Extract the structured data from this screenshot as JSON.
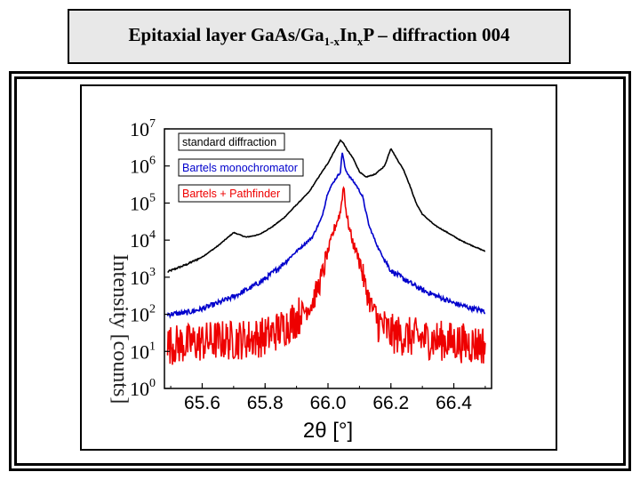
{
  "slide": {
    "title_main": "Epitaxial layer GaAs/Ga",
    "title_sub1": "1-x",
    "title_mid": "In",
    "title_sub2": "x",
    "title_end": "P – diffraction 004"
  },
  "chart_data": {
    "type": "line",
    "title": "",
    "xlabel": "2θ [°]",
    "ylabel": "Intensity [counts]",
    "yscale": "log",
    "xlim": [
      65.48,
      66.52
    ],
    "ylim": [
      1,
      10000000
    ],
    "x_ticks": [
      "65.6",
      "65.8",
      "66.0",
      "66.2",
      "66.4"
    ],
    "y_tick_base": "10",
    "y_tick_exponents": [
      "0",
      "1",
      "2",
      "3",
      "4",
      "5",
      "6",
      "7"
    ],
    "grid": false,
    "legend_position": "top-left",
    "series": [
      {
        "name": "standard diffraction",
        "color": "#000000",
        "x": [
          65.49,
          65.55,
          65.6,
          65.65,
          65.7,
          65.74,
          65.78,
          65.82,
          65.86,
          65.9,
          65.94,
          65.97,
          66.0,
          66.02,
          66.04,
          66.05,
          66.06,
          66.08,
          66.1,
          66.12,
          66.15,
          66.18,
          66.2,
          66.22,
          66.24,
          66.26,
          66.28,
          66.3,
          66.34,
          66.38,
          66.42,
          66.46,
          66.5
        ],
        "y": [
          1400,
          2200,
          3500,
          7000,
          16000,
          12000,
          14000,
          22000,
          40000,
          90000,
          200000,
          500000,
          1200000,
          2500000,
          5000000,
          4000000,
          2800000,
          1600000,
          700000,
          500000,
          600000,
          1000000,
          3000000,
          1500000,
          800000,
          300000,
          100000,
          50000,
          25000,
          16000,
          10000,
          7000,
          5000
        ]
      },
      {
        "name": "Bartels monochromator",
        "color": "#0000cc",
        "x": [
          65.49,
          65.55,
          65.6,
          65.65,
          65.7,
          65.75,
          65.8,
          65.85,
          65.9,
          65.95,
          65.98,
          66.0,
          66.02,
          66.04,
          66.045,
          66.055,
          66.07,
          66.09,
          66.11,
          66.13,
          66.16,
          66.2,
          66.25,
          66.3,
          66.35,
          66.4,
          66.45,
          66.5
        ],
        "y": [
          100,
          110,
          140,
          200,
          300,
          500,
          900,
          2000,
          5000,
          12000,
          40000,
          200000,
          400000,
          700000,
          2500000,
          800000,
          500000,
          300000,
          150000,
          25000,
          6000,
          1500,
          800,
          450,
          300,
          200,
          150,
          120
        ]
      },
      {
        "name": "Bartels + Pathfinder",
        "color": "#ee0000",
        "x": [
          65.49,
          65.55,
          65.6,
          65.65,
          65.7,
          65.75,
          65.8,
          65.85,
          65.9,
          65.95,
          65.98,
          66.0,
          66.02,
          66.04,
          66.045,
          66.05,
          66.06,
          66.08,
          66.1,
          66.12,
          66.14,
          66.16,
          66.2,
          66.25,
          66.3,
          66.35,
          66.4,
          66.45,
          66.5
        ],
        "y": [
          15,
          16,
          18,
          20,
          20,
          22,
          25,
          40,
          80,
          200,
          1000,
          5000,
          20000,
          60000,
          150000,
          300000,
          40000,
          8000,
          3000,
          500,
          150,
          60,
          30,
          25,
          22,
          20,
          18,
          16,
          15
        ]
      }
    ]
  }
}
